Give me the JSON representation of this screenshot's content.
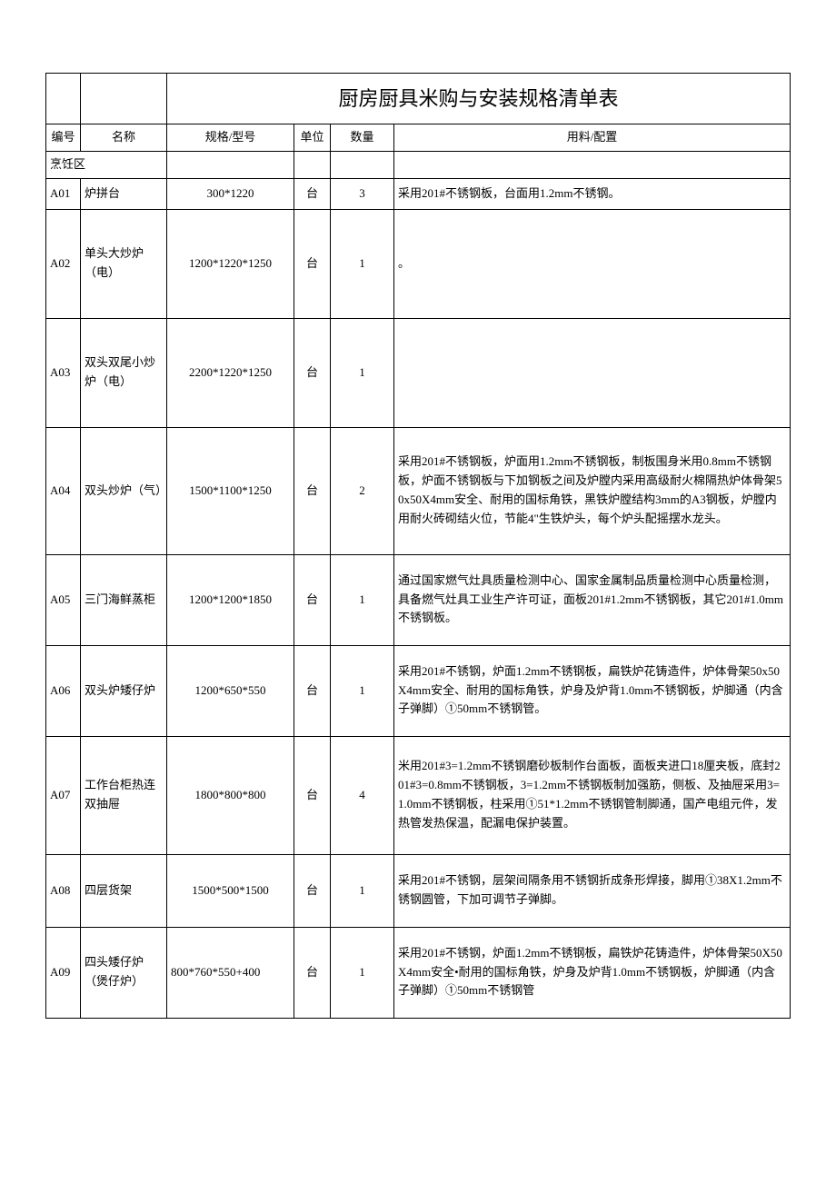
{
  "title": "厨房厨具米购与安装规格清单表",
  "headers": {
    "id": "编号",
    "name": "名称",
    "spec": "规格/型号",
    "unit": "单位",
    "qty": "数量",
    "material": "用料/配置"
  },
  "section": "烹饪区",
  "rows": [
    {
      "id": "A01",
      "name": "炉拼台",
      "spec": "300*1220",
      "unit": "台",
      "qty": "3",
      "material": "采用201#不锈钢板，台面用1.2mm不锈钢。"
    },
    {
      "id": "A02",
      "name": "单头大炒炉（电）",
      "spec": "1200*1220*1250",
      "unit": "台",
      "qty": "1",
      "material": "。"
    },
    {
      "id": "A03",
      "name": "双头双尾小炒炉（电）",
      "spec": "2200*1220*1250",
      "unit": "台",
      "qty": "1",
      "material": ""
    },
    {
      "id": "A04",
      "name": "双头炒炉（气）",
      "spec": "1500*1100*1250",
      "unit": "台",
      "qty": "2",
      "material": "采用201#不锈钢板，炉面用1.2mm不锈钢板，制板围身米用0.8mm不锈钢板，炉面不锈钢板与下加钢板之间及炉膛内采用高级耐火棉隔热炉体骨架50x50X4mm安全、耐用的国标角铁，黑铁炉膛结构3mm的A3钢板，炉膛内用耐火砖砌结火位，节能4\"生铁炉头，每个炉头配摇摆水龙头。"
    },
    {
      "id": "A05",
      "name": "三门海鲜蒸柜",
      "spec": "1200*1200*1850",
      "unit": "台",
      "qty": "1",
      "material": "通过国家燃气灶具质量检测中心、国家金属制品质量检测中心质量检测，具备燃气灶具工业生产许可证，面板201#1.2mm不锈钢板，其它201#1.0mm不锈钢板。"
    },
    {
      "id": "A06",
      "name": "双头炉矮仔炉",
      "spec": "1200*650*550",
      "unit": "台",
      "qty": "1",
      "material": "采用201#不锈钢，炉面1.2mm不锈钢板，扁铁炉花铸造件，炉体骨架50x50X4mm安全、耐用的国标角铁，炉身及炉背1.0mm不锈钢板，炉脚通（内含子弹脚）①50mm不锈钢管。"
    },
    {
      "id": "A07",
      "name": "工作台柜热连双抽屉",
      "spec": "1800*800*800",
      "unit": "台",
      "qty": "4",
      "material": "米用201#3=1.2mm不锈钢磨砂板制作台面板，面板夹进口18厘夹板，底封201#3=0.8mm不锈钢板，3=1.2mm不锈钢板制加强筋，侧板、及抽屉采用3=1.0mm不锈钢板，柱采用①51*1.2mm不锈钢管制脚通，国产电组元件，发热管发热保温，配漏电保护装置。"
    },
    {
      "id": "A08",
      "name": "四层货架",
      "spec": "1500*500*1500",
      "unit": "台",
      "qty": "1",
      "material": "采用201#不锈钢，层架间隔条用不锈钢折成条形焊接，脚用①38X1.2mm不锈钢圆管，下加可调节子弹脚。"
    },
    {
      "id": "A09",
      "name": "四头矮仔炉（煲仔炉）",
      "spec": "800*760*550+400",
      "unit": "台",
      "qty": "1",
      "material": "采用201#不锈钢，炉面1.2mm不锈钢板，扁铁炉花铸造件，炉体骨架50X50X4mm安全•耐用的国标角铁，炉身及炉背1.0mm不锈钢板，炉脚通（内含子弹脚）①50mm不锈钢管"
    }
  ],
  "styling": {
    "border_color": "#000000",
    "background_color": "#ffffff",
    "text_color": "#000000",
    "title_fontsize": 22,
    "body_fontsize": 13,
    "font_family": "SimSun"
  }
}
